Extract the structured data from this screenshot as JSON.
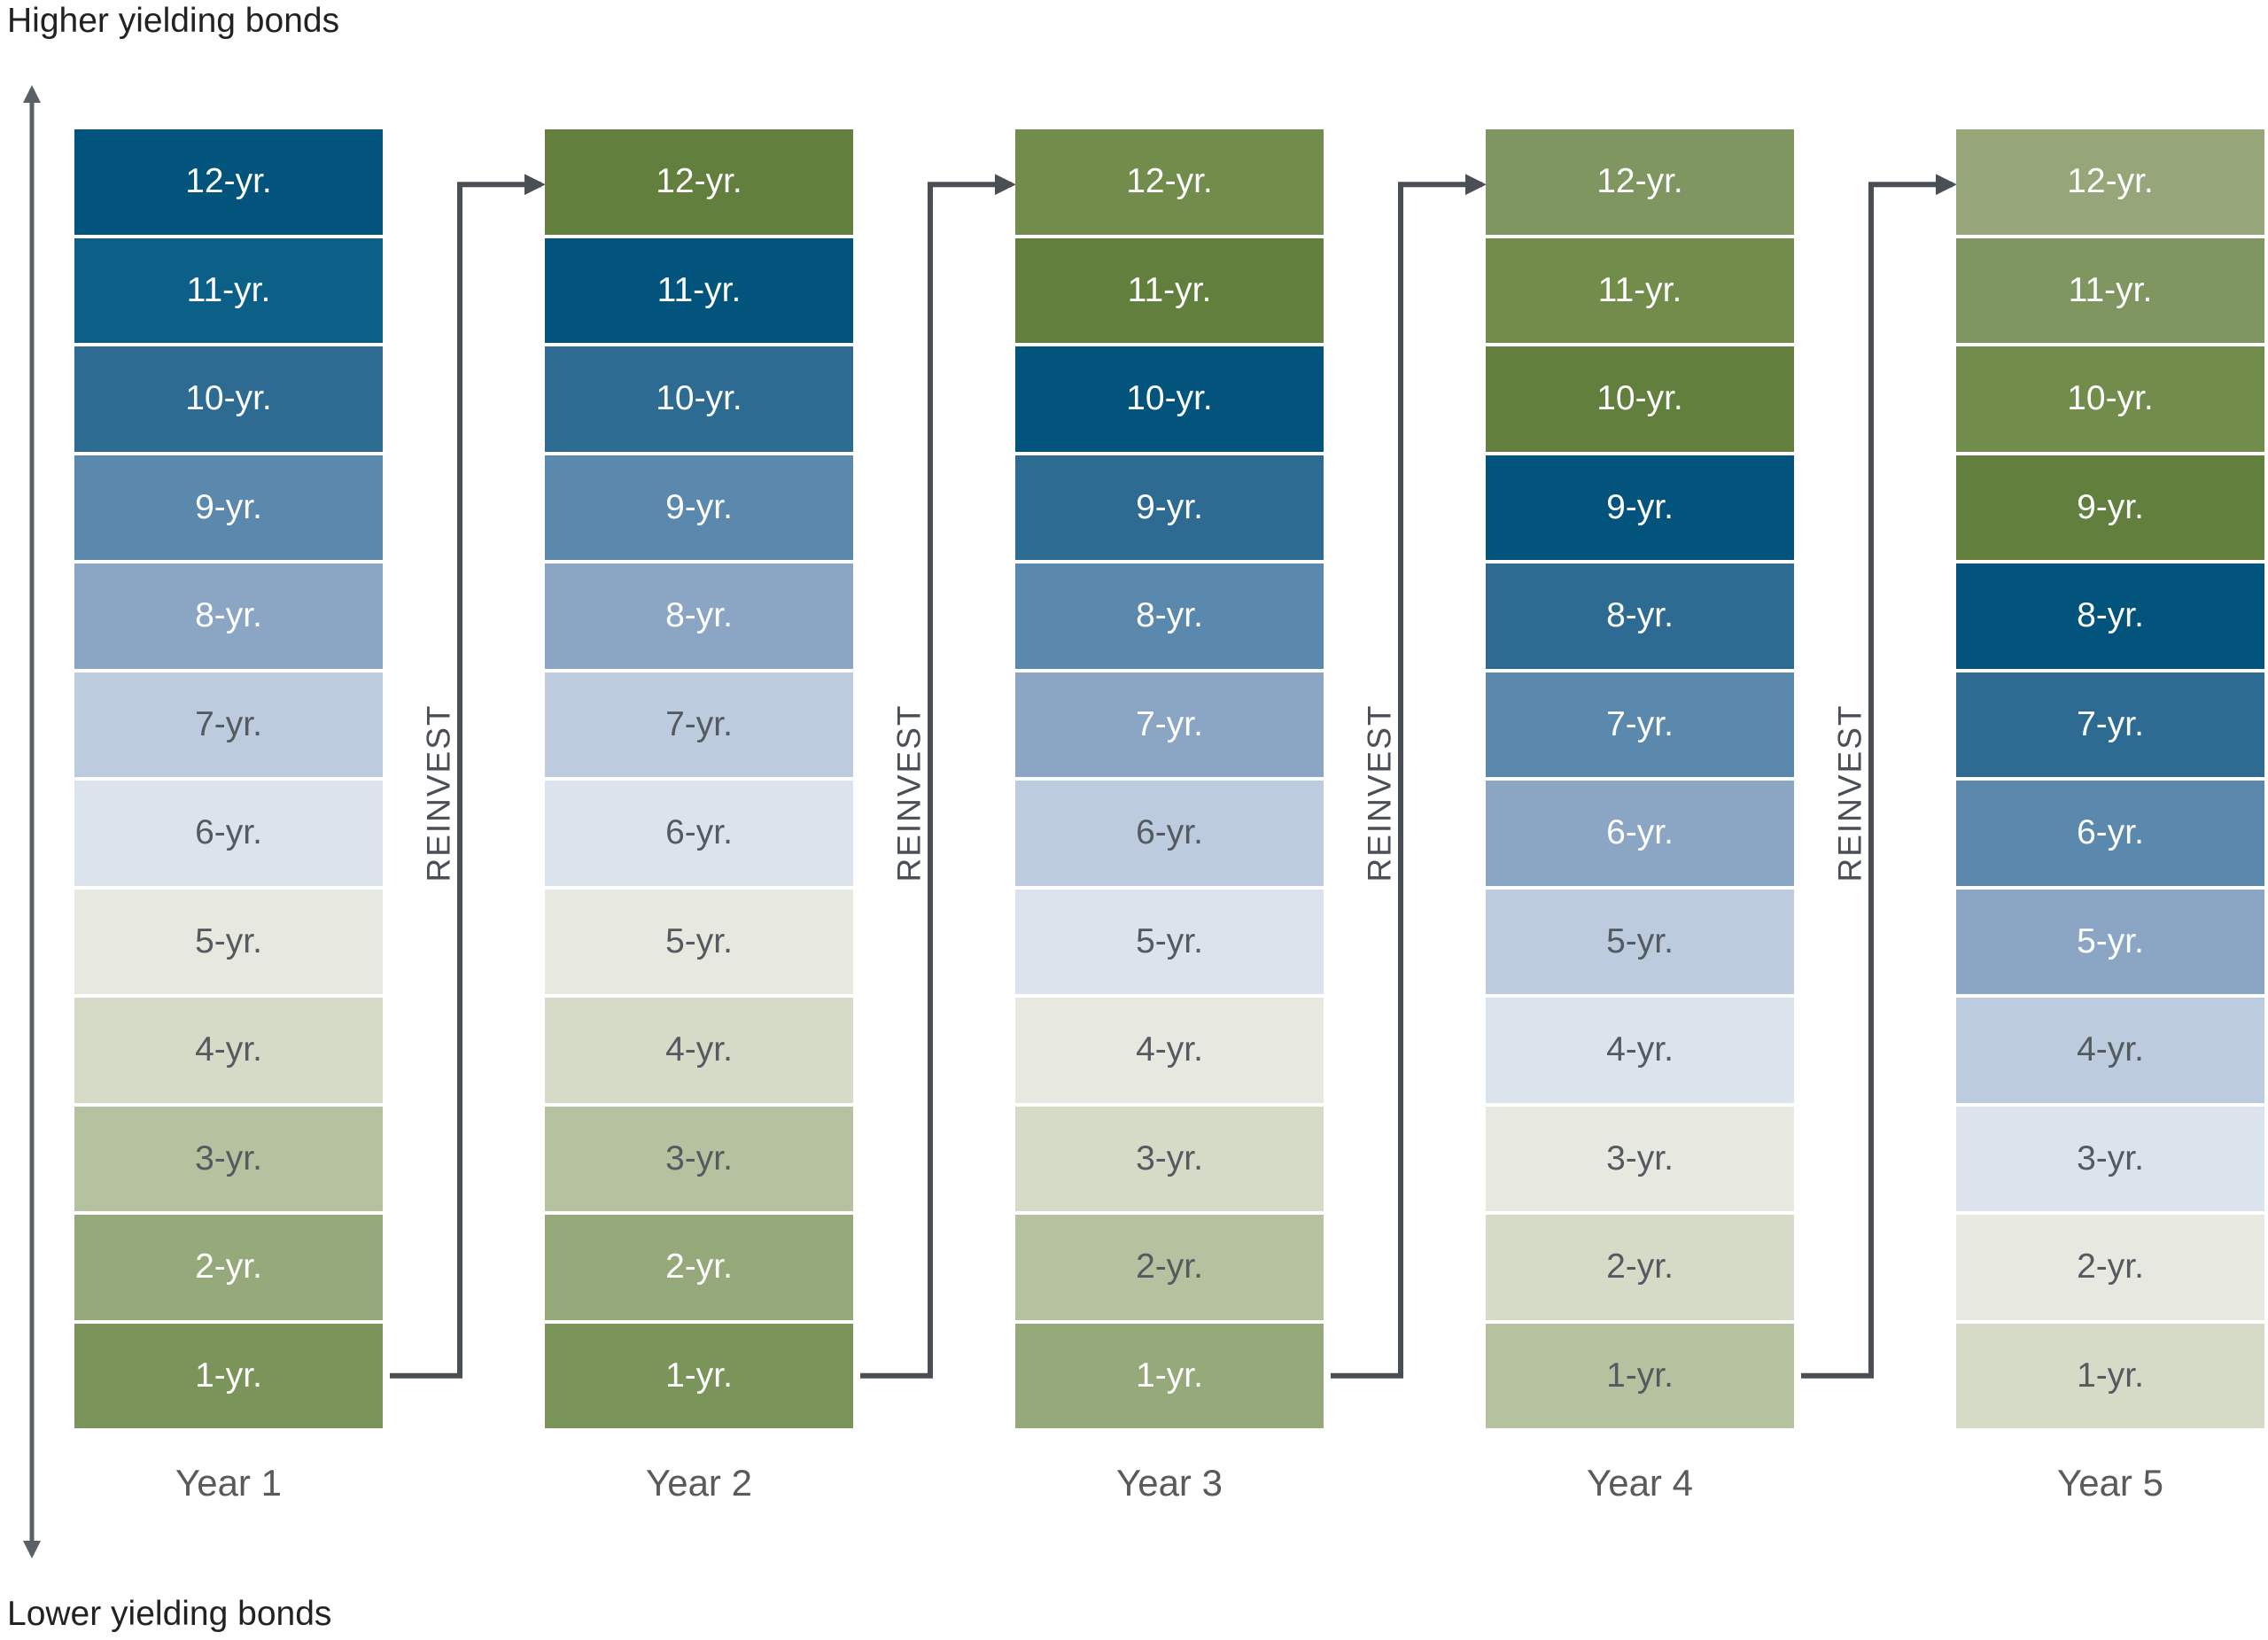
{
  "axis": {
    "top_label": "Higher yielding bonds",
    "bottom_label": "Lower yielding bonds"
  },
  "reinvest_label": "REINVEST",
  "colors": {
    "axis_arrow": "#5b5f66",
    "reinvest_arrow": "#4a4f55",
    "text_dark": "#ffffff",
    "text_light": "#555a60"
  },
  "columns": [
    {
      "year": "Year 1",
      "cells": [
        {
          "label": "12-yr.",
          "color": "#03547d"
        },
        {
          "label": "11-yr.",
          "color": "#0c5f86"
        },
        {
          "label": "10-yr.",
          "color": "#2e6b93"
        },
        {
          "label": "9-yr.",
          "color": "#5b88ad"
        },
        {
          "label": "8-yr.",
          "color": "#8aa6c4"
        },
        {
          "label": "7-yr.",
          "color": "#bccbdd"
        },
        {
          "label": "6-yr.",
          "color": "#dbe3ed"
        },
        {
          "label": "5-yr.",
          "color": "#e7e9e0"
        },
        {
          "label": "4-yr.",
          "color": "#d6dbc8"
        },
        {
          "label": "3-yr.",
          "color": "#b5c19f"
        },
        {
          "label": "2-yr.",
          "color": "#96a97a"
        },
        {
          "label": "1-yr.",
          "color": "#7a9459"
        }
      ]
    },
    {
      "year": "Year 2",
      "cells": [
        {
          "label": "12-yr.",
          "color": "#627f3d"
        },
        {
          "label": "11-yr.",
          "color": "#03547d"
        },
        {
          "label": "10-yr.",
          "color": "#2e6b93"
        },
        {
          "label": "9-yr.",
          "color": "#5b88ad"
        },
        {
          "label": "8-yr.",
          "color": "#8aa6c4"
        },
        {
          "label": "7-yr.",
          "color": "#bccbdd"
        },
        {
          "label": "6-yr.",
          "color": "#dbe3ed"
        },
        {
          "label": "5-yr.",
          "color": "#e7e9e0"
        },
        {
          "label": "4-yr.",
          "color": "#d6dbc8"
        },
        {
          "label": "3-yr.",
          "color": "#b5c19f"
        },
        {
          "label": "2-yr.",
          "color": "#96a97a"
        },
        {
          "label": "1-yr.",
          "color": "#7a9459"
        }
      ]
    },
    {
      "year": "Year 3",
      "cells": [
        {
          "label": "12-yr.",
          "color": "#728c4c"
        },
        {
          "label": "11-yr.",
          "color": "#627f3d"
        },
        {
          "label": "10-yr.",
          "color": "#03547d"
        },
        {
          "label": "9-yr.",
          "color": "#2e6b93"
        },
        {
          "label": "8-yr.",
          "color": "#5b88ad"
        },
        {
          "label": "7-yr.",
          "color": "#8aa6c4"
        },
        {
          "label": "6-yr.",
          "color": "#bccbdd"
        },
        {
          "label": "5-yr.",
          "color": "#dbe3ed"
        },
        {
          "label": "4-yr.",
          "color": "#e7e9e0"
        },
        {
          "label": "3-yr.",
          "color": "#d6dbc8"
        },
        {
          "label": "2-yr.",
          "color": "#b5c19f"
        },
        {
          "label": "1-yr.",
          "color": "#96a97a"
        }
      ]
    },
    {
      "year": "Year 4",
      "cells": [
        {
          "label": "12-yr.",
          "color": "#7f9660"
        },
        {
          "label": "11-yr.",
          "color": "#728c4c"
        },
        {
          "label": "10-yr.",
          "color": "#627f3d"
        },
        {
          "label": "9-yr.",
          "color": "#03547d"
        },
        {
          "label": "8-yr.",
          "color": "#2e6b93"
        },
        {
          "label": "7-yr.",
          "color": "#5b88ad"
        },
        {
          "label": "6-yr.",
          "color": "#8aa6c4"
        },
        {
          "label": "5-yr.",
          "color": "#bccbdd"
        },
        {
          "label": "4-yr.",
          "color": "#dbe3ed"
        },
        {
          "label": "3-yr.",
          "color": "#e7e9e0"
        },
        {
          "label": "2-yr.",
          "color": "#d6dbc8"
        },
        {
          "label": "1-yr.",
          "color": "#b5c19f"
        }
      ]
    },
    {
      "year": "Year 5",
      "cells": [
        {
          "label": "12-yr.",
          "color": "#97a679"
        },
        {
          "label": "11-yr.",
          "color": "#7f9660"
        },
        {
          "label": "10-yr.",
          "color": "#728c4c"
        },
        {
          "label": "9-yr.",
          "color": "#627f3d"
        },
        {
          "label": "8-yr.",
          "color": "#03547d"
        },
        {
          "label": "7-yr.",
          "color": "#2e6b93"
        },
        {
          "label": "6-yr.",
          "color": "#5b88ad"
        },
        {
          "label": "5-yr.",
          "color": "#8aa6c4"
        },
        {
          "label": "4-yr.",
          "color": "#bccbdd"
        },
        {
          "label": "3-yr.",
          "color": "#dbe3ed"
        },
        {
          "label": "2-yr.",
          "color": "#e7e9e0"
        },
        {
          "label": "1-yr.",
          "color": "#d6dbc8"
        }
      ]
    }
  ]
}
